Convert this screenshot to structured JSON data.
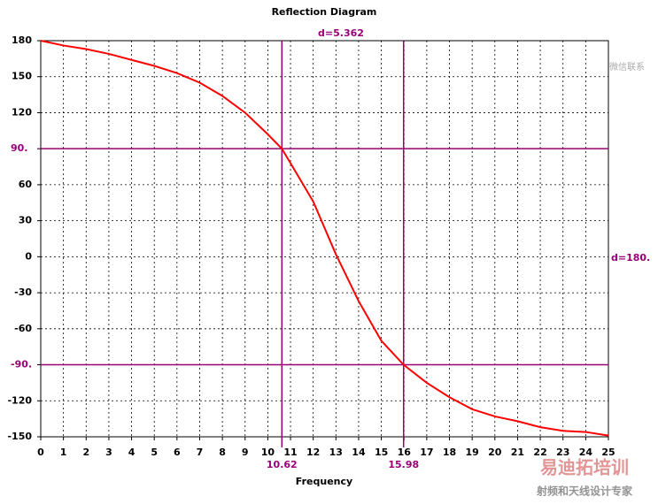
{
  "chart_data": {
    "type": "line",
    "title": "Reflection Diagram",
    "x_label": "Frequency",
    "x": [
      0,
      1,
      2,
      3,
      4,
      5,
      6,
      7,
      8,
      9,
      10,
      10.62,
      11,
      12,
      13,
      14,
      15,
      15.98,
      17,
      18,
      19,
      20,
      21,
      22,
      23,
      24,
      25
    ],
    "series": [
      {
        "name": "Reflection",
        "color": "#ff0000",
        "values": [
          180,
          176,
          173,
          169,
          164,
          159,
          153,
          145,
          134,
          120,
          102,
          90,
          78,
          46,
          2,
          -37,
          -70,
          -90,
          -105,
          -117,
          -127,
          -133,
          -137,
          -142,
          -145,
          -146,
          -149
        ]
      }
    ],
    "xlim": [
      0,
      25
    ],
    "xticks": [
      0,
      1,
      2,
      3,
      4,
      5,
      6,
      7,
      8,
      9,
      10,
      11,
      12,
      13,
      14,
      15,
      16,
      17,
      18,
      19,
      20,
      21,
      22,
      23,
      24,
      25
    ],
    "ylim": [
      -150,
      180
    ],
    "yticks": [
      180,
      150,
      120,
      {
        "value": 90,
        "label": "90."
      },
      60,
      30,
      0,
      -30,
      -60,
      {
        "value": -90,
        "label": "-90."
      },
      -120,
      -150
    ],
    "grid": true,
    "marker_x": [
      {
        "value": 10.62,
        "label": "10.62"
      },
      {
        "value": 15.98,
        "label": "15.98"
      }
    ],
    "marker_y": [
      90,
      -90
    ],
    "marker_color": "#990077",
    "annotations": [
      "d=5.362",
      "d=180."
    ],
    "watermark": [
      "微信联系",
      "易迪拓培训",
      "射频和天线设计专家"
    ]
  }
}
